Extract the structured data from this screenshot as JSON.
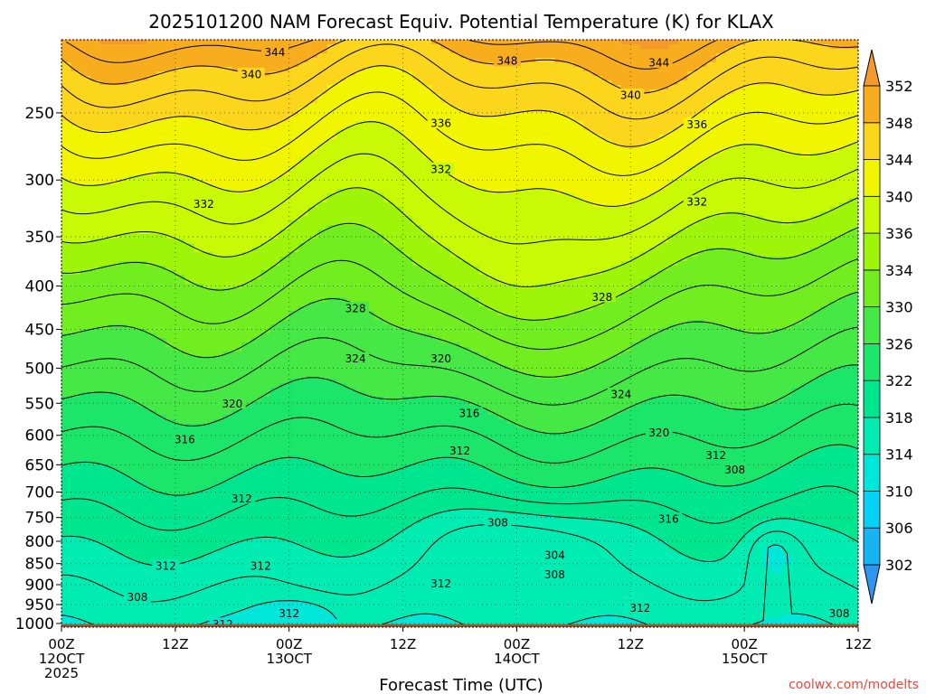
{
  "chart_data": {
    "type": "contour",
    "title": "2025101200 NAM Forecast Equiv. Potential Temperature (K) for KLAX",
    "xlabel": "Forecast Time (UTC)",
    "x_ticks": [
      {
        "hour": 0,
        "lines": [
          "00Z",
          "12OCT",
          "2025"
        ]
      },
      {
        "hour": 12,
        "lines": [
          "12Z"
        ]
      },
      {
        "hour": 24,
        "lines": [
          "00Z",
          "13OCT"
        ]
      },
      {
        "hour": 36,
        "lines": [
          "12Z"
        ]
      },
      {
        "hour": 48,
        "lines": [
          "00Z",
          "14OCT"
        ]
      },
      {
        "hour": 60,
        "lines": [
          "12Z"
        ]
      },
      {
        "hour": 72,
        "lines": [
          "00Z",
          "15OCT"
        ]
      },
      {
        "hour": 84,
        "lines": [
          "12Z"
        ]
      }
    ],
    "xlim": [
      0,
      84
    ],
    "y_ticks": [
      250,
      300,
      350,
      400,
      450,
      500,
      550,
      600,
      650,
      700,
      750,
      800,
      850,
      900,
      950,
      1000
    ],
    "ylim": [
      1010,
      205
    ],
    "y_scale": "log",
    "grid": true,
    "colorbar": {
      "placement": "right",
      "levels": [
        302,
        306,
        310,
        314,
        318,
        322,
        326,
        330,
        334,
        336,
        340,
        344,
        348,
        352
      ],
      "colors": [
        "#2f96f0",
        "#17b4f4",
        "#06d2f8",
        "#00e6d9",
        "#00ecb3",
        "#00e68f",
        "#1ce66a",
        "#45e845",
        "#72ee20",
        "#9ef50a",
        "#c8fa05",
        "#f2f500",
        "#fbd61c",
        "#f7ad1e",
        "#f49a2c"
      ]
    },
    "contour_labels": [
      {
        "hour": 22.5,
        "p": 212,
        "text": "344"
      },
      {
        "hour": 20,
        "p": 225,
        "text": "340"
      },
      {
        "hour": 47,
        "p": 217,
        "text": "348"
      },
      {
        "hour": 63,
        "p": 218,
        "text": "344"
      },
      {
        "hour": 60,
        "p": 238,
        "text": "340"
      },
      {
        "hour": 40,
        "p": 257,
        "text": "336"
      },
      {
        "hour": 67,
        "p": 258,
        "text": "336"
      },
      {
        "hour": 40,
        "p": 291,
        "text": "332"
      },
      {
        "hour": 15,
        "p": 320,
        "text": "332"
      },
      {
        "hour": 67,
        "p": 318,
        "text": "332"
      },
      {
        "hour": 31,
        "p": 425,
        "text": "328"
      },
      {
        "hour": 57,
        "p": 412,
        "text": "328"
      },
      {
        "hour": 31,
        "p": 487,
        "text": "324"
      },
      {
        "hour": 40,
        "p": 487,
        "text": "320"
      },
      {
        "hour": 59,
        "p": 536,
        "text": "324"
      },
      {
        "hour": 18,
        "p": 550,
        "text": "320"
      },
      {
        "hour": 43,
        "p": 565,
        "text": "316"
      },
      {
        "hour": 63,
        "p": 595,
        "text": "320"
      },
      {
        "hour": 13,
        "p": 606,
        "text": "316"
      },
      {
        "hour": 42,
        "p": 625,
        "text": "312"
      },
      {
        "hour": 69,
        "p": 633,
        "text": "312"
      },
      {
        "hour": 71,
        "p": 658,
        "text": "308"
      },
      {
        "hour": 19,
        "p": 712,
        "text": "312"
      },
      {
        "hour": 46,
        "p": 760,
        "text": "308"
      },
      {
        "hour": 64,
        "p": 752,
        "text": "316"
      },
      {
        "hour": 52,
        "p": 830,
        "text": "304"
      },
      {
        "hour": 52,
        "p": 875,
        "text": "308"
      },
      {
        "hour": 11,
        "p": 855,
        "text": "312"
      },
      {
        "hour": 21,
        "p": 855,
        "text": "312"
      },
      {
        "hour": 40,
        "p": 897,
        "text": "312"
      },
      {
        "hour": 8,
        "p": 930,
        "text": "308"
      },
      {
        "hour": 24,
        "p": 972,
        "text": "312"
      },
      {
        "hour": 61,
        "p": 958,
        "text": "312"
      },
      {
        "hour": 82,
        "p": 972,
        "text": "308"
      },
      {
        "hour": 17,
        "p": 1001,
        "text": "312"
      }
    ]
  },
  "watermark": "coolwx.com/modelts"
}
